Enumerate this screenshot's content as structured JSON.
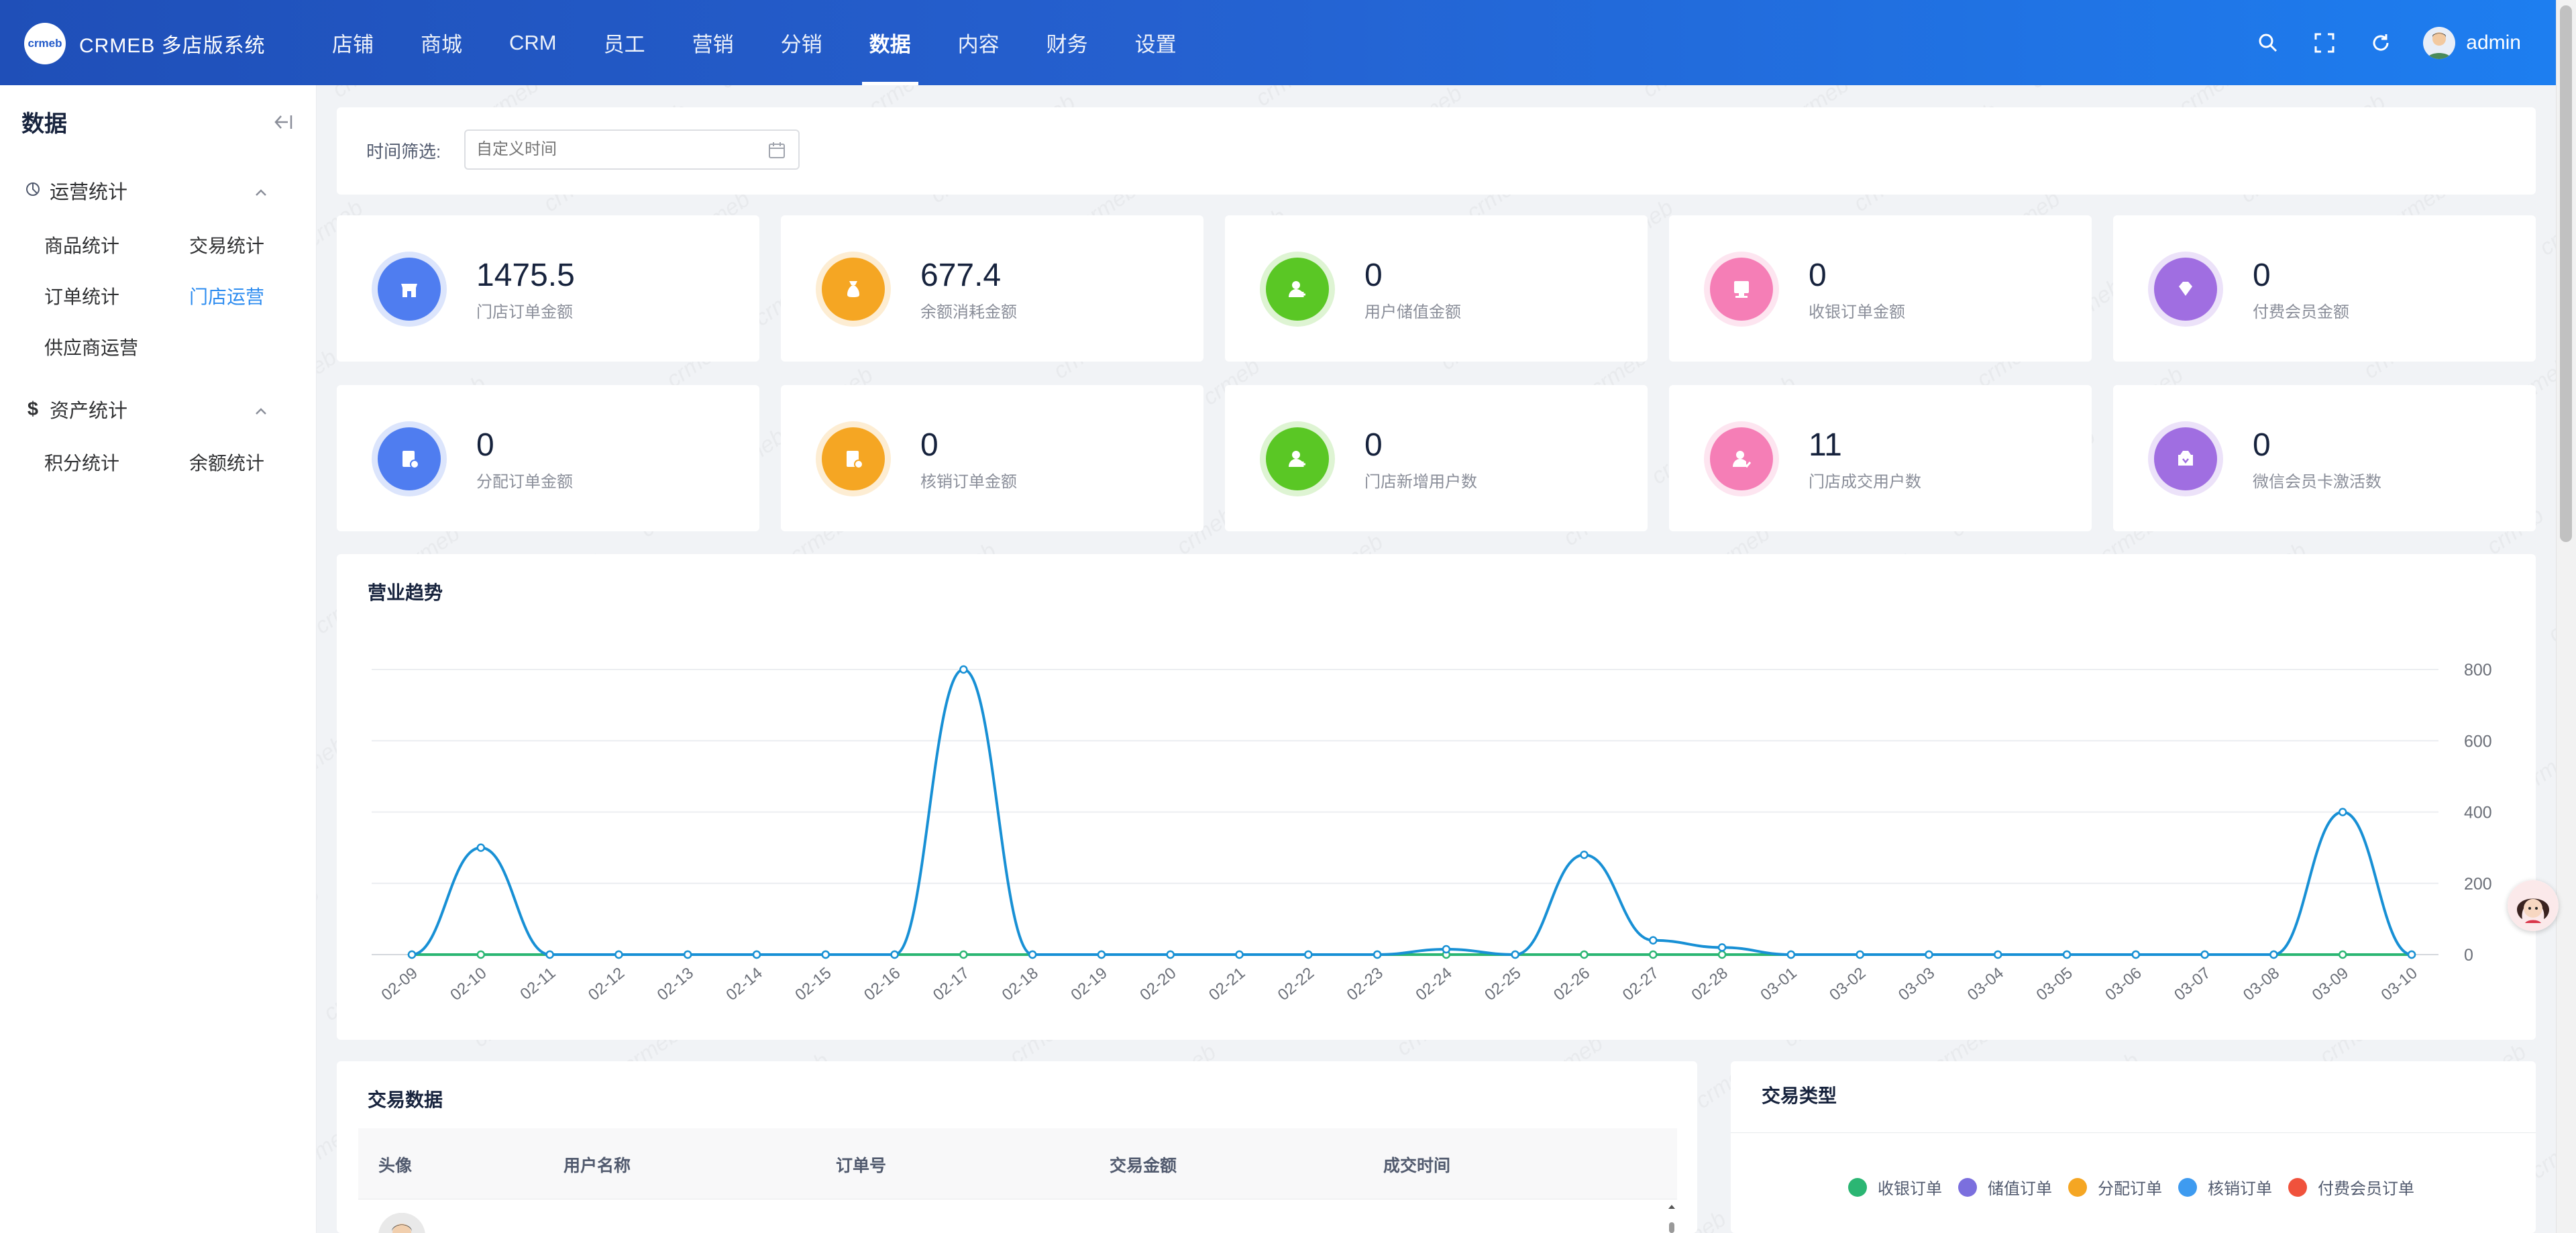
{
  "app": {
    "logo_mark": "crmeb",
    "title": "CRMEB 多店版系统"
  },
  "nav": [
    "店铺",
    "商城",
    "CRM",
    "员工",
    "营销",
    "分销",
    "数据",
    "内容",
    "财务",
    "设置"
  ],
  "nav_active": "数据",
  "user": {
    "name": "admin"
  },
  "sidebar": {
    "title": "数据",
    "groups": [
      {
        "label": "运营统计",
        "icon": "pie-chart-icon",
        "items": [
          "商品统计",
          "交易统计",
          "订单统计",
          "门店运营",
          "供应商运营"
        ]
      },
      {
        "label": "资产统计",
        "icon": "dollar-icon",
        "items": [
          "积分统计",
          "余额统计"
        ]
      }
    ],
    "active_item": "门店运营"
  },
  "filter": {
    "label": "时间筛选:",
    "placeholder": "自定义时间"
  },
  "stats": [
    {
      "value": "1475.5",
      "label": "门店订单金额",
      "icon": "store-icon",
      "color": "#4f7df0"
    },
    {
      "value": "677.4",
      "label": "余额消耗金额",
      "icon": "money-bag-icon",
      "color": "#f5a623"
    },
    {
      "value": "0",
      "label": "用户储值金额",
      "icon": "user-add-icon",
      "color": "#5ac725"
    },
    {
      "value": "0",
      "label": "收银订单金额",
      "icon": "cashier-icon",
      "color": "#f57eb6"
    },
    {
      "value": "0",
      "label": "付费会员金额",
      "icon": "diamond-icon",
      "color": "#a06ee1"
    },
    {
      "value": "0",
      "label": "分配订单金额",
      "icon": "order-assign-icon",
      "color": "#4f7df0"
    },
    {
      "value": "0",
      "label": "核销订单金额",
      "icon": "order-verify-icon",
      "color": "#f5a623"
    },
    {
      "value": "0",
      "label": "门店新增用户数",
      "icon": "new-user-icon",
      "color": "#5ac725"
    },
    {
      "value": "11",
      "label": "门店成交用户数",
      "icon": "deal-user-icon",
      "color": "#f57eb6"
    },
    {
      "value": "0",
      "label": "微信会员卡激活数",
      "icon": "wechat-card-icon",
      "color": "#a06ee1"
    }
  ],
  "chart_title": "营业趋势",
  "chart_data": {
    "type": "line",
    "categories": [
      "02-09",
      "02-10",
      "02-11",
      "02-12",
      "02-13",
      "02-14",
      "02-15",
      "02-16",
      "02-17",
      "02-18",
      "02-19",
      "02-20",
      "02-21",
      "02-22",
      "02-23",
      "02-24",
      "02-25",
      "02-26",
      "02-27",
      "02-28",
      "03-01",
      "03-02",
      "03-03",
      "03-04",
      "03-05",
      "03-06",
      "03-07",
      "03-08",
      "03-09",
      "03-10"
    ],
    "series": [
      {
        "color": "#1890d5",
        "values": [
          0,
          300,
          0,
          0,
          0,
          0,
          0,
          0,
          800,
          0,
          0,
          0,
          0,
          0,
          0,
          15,
          0,
          280,
          40,
          20,
          0,
          0,
          0,
          0,
          0,
          0,
          0,
          0,
          400,
          0
        ]
      },
      {
        "color": "#2bb673",
        "values": [
          0,
          0,
          0,
          0,
          0,
          0,
          0,
          0,
          0,
          0,
          0,
          0,
          0,
          0,
          0,
          0,
          0,
          0,
          0,
          0,
          0,
          0,
          0,
          0,
          0,
          0,
          0,
          0,
          0,
          0
        ]
      }
    ],
    "yticks": [
      0,
      200,
      400,
      600,
      800
    ],
    "ylim": [
      0,
      800
    ],
    "y_axis_position": "right",
    "grid": true
  },
  "table": {
    "title": "交易数据",
    "columns": [
      "头像",
      "用户名称",
      "订单号",
      "交易金额",
      "成交时间"
    ]
  },
  "type_chart": {
    "title": "交易类型",
    "legend": [
      {
        "label": "收银订单",
        "color": "#2bb673"
      },
      {
        "label": "储值订单",
        "color": "#7b6fde"
      },
      {
        "label": "分配订单",
        "color": "#f5a623"
      },
      {
        "label": "核销订单",
        "color": "#3e9bf0"
      },
      {
        "label": "付费会员订单",
        "color": "#f0523c"
      }
    ]
  }
}
